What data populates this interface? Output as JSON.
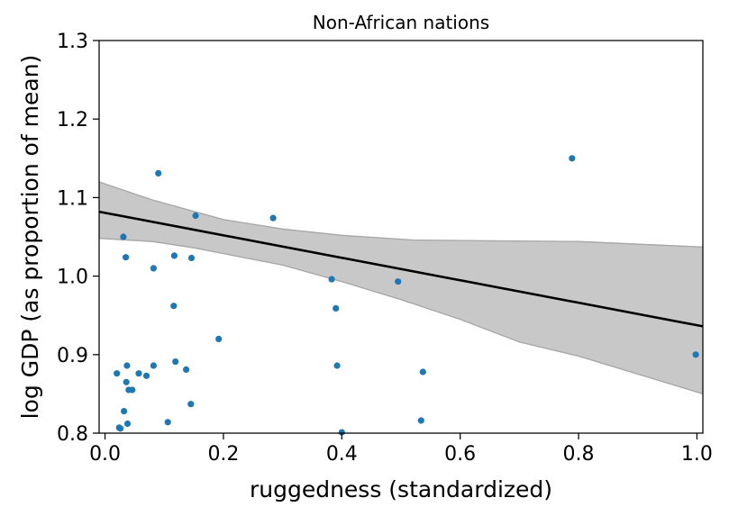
{
  "chart_data": {
    "type": "scatter",
    "title": "Non-African nations",
    "xlabel": "ruggedness (standardized)",
    "ylabel": "log GDP (as proportion of mean)",
    "xlim": [
      -0.01,
      1.01
    ],
    "ylim": [
      0.8,
      1.3
    ],
    "xticks": [
      0.0,
      0.2,
      0.4,
      0.6,
      0.8,
      1.0
    ],
    "xtick_labels": [
      "0.0",
      "0.2",
      "0.4",
      "0.6",
      "0.8",
      "1.0"
    ],
    "yticks": [
      0.8,
      0.9,
      1.0,
      1.1,
      1.2,
      1.3
    ],
    "ytick_labels": [
      "0.8",
      "0.9",
      "1.0",
      "1.1",
      "1.2",
      "1.3"
    ],
    "grid": false,
    "colors": {
      "points": "#1f77b4",
      "line": "#000000",
      "band": "#c8c8c8",
      "band_edge": "#a6a6a6"
    },
    "points": [
      {
        "x": 0.02,
        "y": 0.876
      },
      {
        "x": 0.024,
        "y": 0.807
      },
      {
        "x": 0.026,
        "y": 0.806
      },
      {
        "x": 0.031,
        "y": 1.05
      },
      {
        "x": 0.032,
        "y": 0.828
      },
      {
        "x": 0.035,
        "y": 1.024
      },
      {
        "x": 0.036,
        "y": 0.865
      },
      {
        "x": 0.037,
        "y": 0.886
      },
      {
        "x": 0.038,
        "y": 0.812
      },
      {
        "x": 0.04,
        "y": 0.855
      },
      {
        "x": 0.046,
        "y": 0.855
      },
      {
        "x": 0.057,
        "y": 0.876
      },
      {
        "x": 0.07,
        "y": 0.873
      },
      {
        "x": 0.082,
        "y": 0.886
      },
      {
        "x": 0.082,
        "y": 1.01
      },
      {
        "x": 0.09,
        "y": 1.131
      },
      {
        "x": 0.106,
        "y": 0.814
      },
      {
        "x": 0.116,
        "y": 0.962
      },
      {
        "x": 0.117,
        "y": 1.026
      },
      {
        "x": 0.119,
        "y": 0.891
      },
      {
        "x": 0.137,
        "y": 0.881
      },
      {
        "x": 0.145,
        "y": 0.837
      },
      {
        "x": 0.146,
        "y": 1.023
      },
      {
        "x": 0.153,
        "y": 1.077
      },
      {
        "x": 0.192,
        "y": 0.92
      },
      {
        "x": 0.284,
        "y": 1.074
      },
      {
        "x": 0.383,
        "y": 0.996
      },
      {
        "x": 0.39,
        "y": 0.959
      },
      {
        "x": 0.392,
        "y": 0.886
      },
      {
        "x": 0.4,
        "y": 0.801
      },
      {
        "x": 0.495,
        "y": 0.993
      },
      {
        "x": 0.534,
        "y": 0.816
      },
      {
        "x": 0.537,
        "y": 0.878
      },
      {
        "x": 0.789,
        "y": 1.15
      },
      {
        "x": 0.998,
        "y": 0.9
      }
    ],
    "regression_line": [
      {
        "x": -0.01,
        "y": 1.082
      },
      {
        "x": 1.01,
        "y": 0.936
      }
    ],
    "confidence_band": {
      "upper": [
        {
          "x": -0.01,
          "y": 1.12
        },
        {
          "x": 0.08,
          "y": 1.097
        },
        {
          "x": 0.2,
          "y": 1.072
        },
        {
          "x": 0.3,
          "y": 1.06
        },
        {
          "x": 0.4,
          "y": 1.052
        },
        {
          "x": 0.52,
          "y": 1.046
        },
        {
          "x": 0.65,
          "y": 1.045
        },
        {
          "x": 0.8,
          "y": 1.044
        },
        {
          "x": 1.01,
          "y": 1.037
        }
      ],
      "lower": [
        {
          "x": -0.01,
          "y": 1.048
        },
        {
          "x": 0.08,
          "y": 1.044
        },
        {
          "x": 0.15,
          "y": 1.036
        },
        {
          "x": 0.3,
          "y": 1.014
        },
        {
          "x": 0.4,
          "y": 0.993
        },
        {
          "x": 0.5,
          "y": 0.97
        },
        {
          "x": 0.6,
          "y": 0.945
        },
        {
          "x": 0.7,
          "y": 0.916
        },
        {
          "x": 0.8,
          "y": 0.898
        },
        {
          "x": 1.01,
          "y": 0.85
        }
      ]
    }
  }
}
